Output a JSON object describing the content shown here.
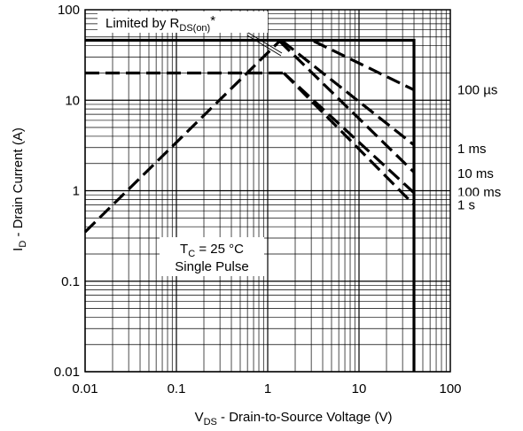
{
  "chart_data": {
    "type": "line",
    "xscale": "log",
    "yscale": "log",
    "xlim": [
      0.01,
      100
    ],
    "ylim": [
      0.01,
      100
    ],
    "grid": true,
    "xlabel": {
      "main": "V",
      "sub": "DS",
      "rest": " - Drain-to-Source Voltage (V)"
    },
    "ylabel": {
      "main": "I",
      "sub": "D",
      "rest": " - Drain Current (A)"
    },
    "xticks": [
      {
        "value": 0.01,
        "label": "0.01"
      },
      {
        "value": 0.1,
        "label": "0.1"
      },
      {
        "value": 1,
        "label": "1"
      },
      {
        "value": 10,
        "label": "10"
      },
      {
        "value": 100,
        "label": "100"
      }
    ],
    "yticks": [
      {
        "value": 0.01,
        "label": "0.01"
      },
      {
        "value": 0.1,
        "label": "0.1"
      },
      {
        "value": 1,
        "label": "1"
      },
      {
        "value": 10,
        "label": "10"
      },
      {
        "value": 100,
        "label": "100"
      }
    ],
    "series": [
      {
        "name": "Limited by RDS(on)*",
        "style": "dashed",
        "points": [
          [
            0.01,
            0.35
          ],
          [
            1.35,
            45
          ]
        ]
      },
      {
        "style": "solid",
        "points": [
          [
            0.01,
            46
          ],
          [
            40,
            46
          ],
          [
            40,
            0.01
          ]
        ]
      },
      {
        "style": "dashed",
        "points": [
          [
            0.01,
            20
          ],
          [
            1.5,
            20
          ]
        ]
      },
      {
        "name": "100 µs",
        "style": "dashed",
        "points": [
          [
            3.2,
            45
          ],
          [
            40,
            13
          ]
        ]
      },
      {
        "name": "1 ms",
        "style": "dashed",
        "points": [
          [
            1.45,
            45
          ],
          [
            40,
            3.2
          ]
        ]
      },
      {
        "name": "10 ms",
        "style": "dashed",
        "points": [
          [
            1.35,
            45
          ],
          [
            40,
            1.6
          ]
        ]
      },
      {
        "name": "100 ms",
        "style": "dashed",
        "points": [
          [
            1.5,
            20
          ],
          [
            40,
            0.95
          ]
        ]
      },
      {
        "name": "1 s",
        "style": "dashed",
        "points": [
          [
            1.5,
            20
          ],
          [
            40,
            0.7
          ]
        ]
      }
    ],
    "annotations": {
      "limited": {
        "prefix": "Limited by R",
        "sub": "DS(on)",
        "suffix": "*"
      },
      "condition": {
        "tc_main": "T",
        "tc_sub": "C",
        "tc_rest": " = 25 °C",
        "pulse": "Single Pulse"
      }
    },
    "curve_labels": [
      {
        "series": 3,
        "text": "100 µs",
        "y": 13
      },
      {
        "series": 4,
        "text": "1 ms",
        "y": 2.9
      },
      {
        "series": 5,
        "text": "10 ms",
        "y": 1.55
      },
      {
        "series": 6,
        "text": "100 ms",
        "y": 0.97
      },
      {
        "series": 7,
        "text": "1 s",
        "y": 0.7
      }
    ]
  }
}
